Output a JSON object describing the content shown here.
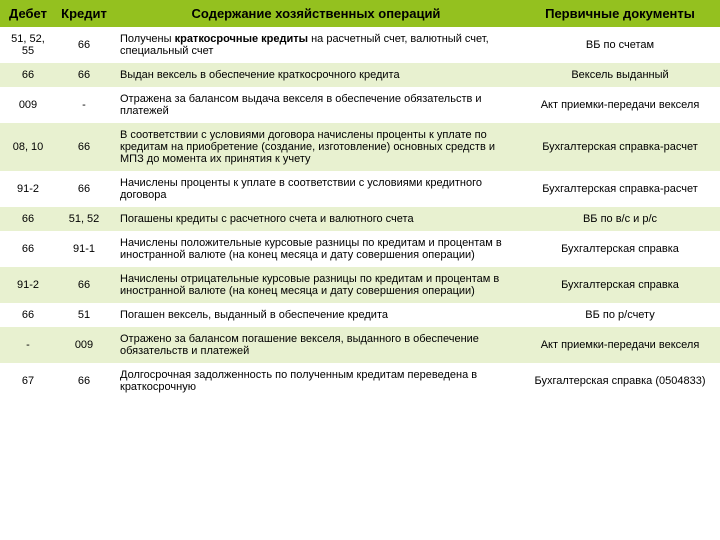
{
  "colors": {
    "header_bg": "#94c11f",
    "header_fg": "#000000",
    "row_even_bg": "#ffffff",
    "row_odd_bg": "#e8f1d0",
    "text": "#000000"
  },
  "fontsize_header": 13,
  "fontsize_body": 11,
  "columns": {
    "debit": "Дебет",
    "credit": "Кредит",
    "desc": "Содержание хозяйственных операций",
    "docs": "Первичные документы"
  },
  "rows": [
    {
      "debit": "51, 52, 55",
      "credit": "66",
      "desc": "Получены <b>краткосрочные кредиты</b> на расчетный счет, валютный счет, специальный счет",
      "docs": "ВБ по счетам"
    },
    {
      "debit": "66",
      "credit": "66",
      "desc": "Выдан вексель в обеспечение краткосрочного кредита",
      "docs": "Вексель выданный"
    },
    {
      "debit": "009",
      "credit": "-",
      "desc": "Отражена за балансом выдача векселя в обеспечение обязательств и платежей",
      "docs": "Акт приемки-передачи векселя"
    },
    {
      "debit": "08, 10",
      "credit": "66",
      "desc": "В соответствии с условиями договора начислены проценты к уплате по кредитам на приобретение (создание, изготовление) основных средств и МПЗ до момента их принятия к учету",
      "docs": "Бухгалтерская справка-расчет"
    },
    {
      "debit": "91-2",
      "credit": "66",
      "desc": "Начислены проценты к уплате в соответствии с условиями кредитного договора",
      "docs": "Бухгалтерская справка-расчет"
    },
    {
      "debit": "66",
      "credit": "51, 52",
      "desc": "Погашены кредиты с расчетного счета и валютного счета",
      "docs": "ВБ по в/с и р/с"
    },
    {
      "debit": "66",
      "credit": "91-1",
      "desc": "Начислены положительные курсовые разницы по кредитам и процентам в иностранной валюте (на конец месяца и дату совершения операции)",
      "docs": "Бухгалтерская справка"
    },
    {
      "debit": "91-2",
      "credit": "66",
      "desc": "Начислены отрицательные курсовые разницы по кредитам и процентам в иностранной валюте (на конец месяца и дату совершения операции)",
      "docs": "Бухгалтерская справка"
    },
    {
      "debit": "66",
      "credit": "51",
      "desc": "Погашен вексель, выданный в обеспечение кредита",
      "docs": "ВБ по р/счету"
    },
    {
      "debit": "-",
      "credit": "009",
      "desc": "Отражено за балансом погашение векселя, выданного в обеспечение обязательств и платежей",
      "docs": "Акт приемки-передачи векселя"
    },
    {
      "debit": "67",
      "credit": "66",
      "desc": "Долгосрочная задолженность по полученным кредитам переведена в краткосрочную",
      "docs": "Бухгалтерская справка (0504833)"
    }
  ]
}
